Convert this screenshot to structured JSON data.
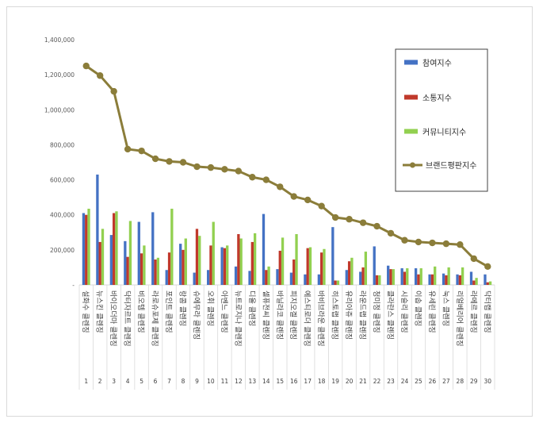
{
  "chart_data": {
    "type": "bar",
    "categories": [
      {
        "rank": "1",
        "name": "설화수 클렌징"
      },
      {
        "rank": "2",
        "name": "뉴스킨 클렌징"
      },
      {
        "rank": "3",
        "name": "바이오더마 클렌징"
      },
      {
        "rank": "4",
        "name": "닥터자르트 클렌징"
      },
      {
        "rank": "5",
        "name": "비오템 클렌징"
      },
      {
        "rank": "6",
        "name": "라로슈포제 클렌징"
      },
      {
        "rank": "7",
        "name": "포인트 클렌징"
      },
      {
        "rank": "8",
        "name": "랑콤 클렌징"
      },
      {
        "rank": "9",
        "name": "슈에무라 클렌징"
      },
      {
        "rank": "10",
        "name": "오휘 클렌징"
      },
      {
        "rank": "11",
        "name": "아벤느 클렌징"
      },
      {
        "rank": "12",
        "name": "뉴트로지나 클렌징"
      },
      {
        "rank": "13",
        "name": "디올 클렌징"
      },
      {
        "rank": "14",
        "name": "셀퓨전씨 클렌징"
      },
      {
        "rank": "15",
        "name": "바닐라코 클렌징"
      },
      {
        "rank": "16",
        "name": "피지오겔 클렌징"
      },
      {
        "rank": "17",
        "name": "에스티로더 클렌징"
      },
      {
        "rank": "18",
        "name": "바비브라운 클렌징"
      },
      {
        "rank": "19",
        "name": "히스토랩 클렌징"
      },
      {
        "rank": "20",
        "name": "유리아쥬 클렌징"
      },
      {
        "rank": "21",
        "name": "라운드랩 클렌징"
      },
      {
        "rank": "22",
        "name": "청미정 클렌징"
      },
      {
        "rank": "23",
        "name": "클라란스 클렌징"
      },
      {
        "rank": "24",
        "name": "시슬리 클렌징"
      },
      {
        "rank": "25",
        "name": "이솝 클렌징"
      },
      {
        "rank": "26",
        "name": "유세린 클렌징"
      },
      {
        "rank": "27",
        "name": "눅스 클렌징"
      },
      {
        "rank": "28",
        "name": "리얼베리어 클렌징"
      },
      {
        "rank": "29",
        "name": "라메르 클렌징"
      },
      {
        "rank": "30",
        "name": "닥터랩 클렌징"
      }
    ],
    "series": [
      {
        "name": "참여지수",
        "type": "bar",
        "color": "#4472c4",
        "values": [
          410000,
          630000,
          285000,
          250000,
          360000,
          415000,
          85000,
          235000,
          70000,
          85000,
          215000,
          105000,
          80000,
          405000,
          90000,
          70000,
          60000,
          60000,
          330000,
          85000,
          75000,
          220000,
          110000,
          95000,
          95000,
          60000,
          65000,
          60000,
          75000,
          60000
        ]
      },
      {
        "name": "소통지수",
        "type": "bar",
        "color": "#c0392b",
        "values": [
          400000,
          245000,
          410000,
          160000,
          180000,
          145000,
          185000,
          200000,
          320000,
          225000,
          210000,
          290000,
          245000,
          85000,
          195000,
          145000,
          210000,
          185000,
          25000,
          135000,
          100000,
          55000,
          90000,
          75000,
          60000,
          60000,
          55000,
          55000,
          25000,
          15000
        ]
      },
      {
        "name": "커뮤니티지수",
        "type": "bar",
        "color": "#92d050",
        "values": [
          435000,
          320000,
          420000,
          365000,
          225000,
          155000,
          435000,
          265000,
          280000,
          360000,
          225000,
          265000,
          295000,
          105000,
          270000,
          290000,
          215000,
          205000,
          25000,
          155000,
          190000,
          55000,
          90000,
          95000,
          95000,
          105000,
          100000,
          100000,
          40000,
          20000
        ]
      },
      {
        "name": "브랜드평판지수",
        "type": "line",
        "color": "#8b7d3a",
        "values": [
          1250000,
          1195000,
          1105000,
          775000,
          765000,
          720000,
          705000,
          700000,
          675000,
          670000,
          660000,
          650000,
          615000,
          600000,
          560000,
          505000,
          485000,
          450000,
          385000,
          375000,
          355000,
          335000,
          295000,
          255000,
          245000,
          240000,
          235000,
          230000,
          150000,
          105000
        ]
      }
    ],
    "y_ticks": [
      "1,400,000",
      "1,200,000",
      "1,000,000",
      "800,000",
      "600,000",
      "400,000",
      "200,000",
      "-"
    ],
    "ylim": [
      0,
      1400000
    ],
    "grid": false,
    "legend_position": "right-top-inside"
  }
}
